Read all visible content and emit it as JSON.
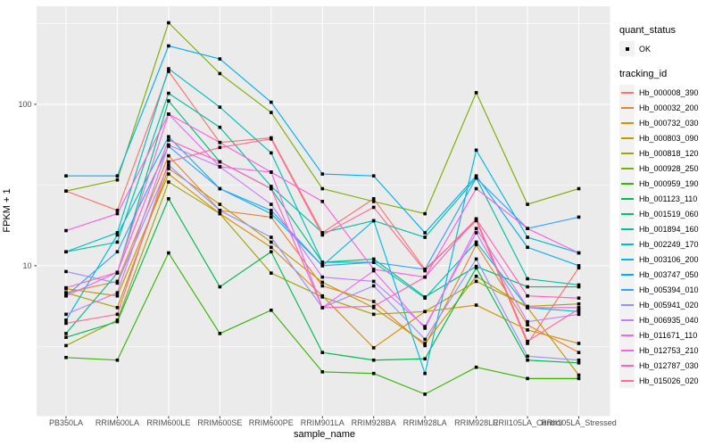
{
  "chart_data": {
    "type": "line",
    "title": "",
    "xlabel": "sample_name",
    "ylabel": "FPKM + 1",
    "y_scale": "log10",
    "ylim": [
      1.17,
      405
    ],
    "y_ticks": [
      10,
      100
    ],
    "y_tick_labels": [
      "10",
      "100"
    ],
    "y_minor": [
      3.162,
      31.62,
      316.2
    ],
    "grid": true,
    "panel_bg": "#EBEBEB",
    "grid_color": "#FFFFFF",
    "axis_text_color": "#4D4D4D",
    "point_color": "#000000",
    "legend_position": "right",
    "legend": {
      "quant_status": {
        "title": "quant_status",
        "items": [
          "OK"
        ]
      },
      "tracking_id": {
        "title": "tracking_id"
      }
    },
    "categories": [
      "PB350LA",
      "RRIM600LA",
      "RRIM600LE",
      "RRIM600SE",
      "RRIM600PE",
      "RRIM901LA",
      "RRIM928BA",
      "RRIM928LA",
      "RRIM928LE",
      "RRII105LA_Control",
      "RRII105LA_Stressed"
    ],
    "series": [
      {
        "name": "Hb_000008_390",
        "color": "#F8766D",
        "values": [
          29,
          22,
          160,
          58,
          62,
          16,
          26,
          9.5,
          19,
          3.3,
          9.7
        ]
      },
      {
        "name": "Hb_000032_200",
        "color": "#EA8331",
        "values": [
          6.8,
          8.0,
          48,
          22,
          20,
          7.5,
          6.0,
          3.2,
          13.5,
          4.3,
          2.9
        ]
      },
      {
        "name": "Hb_000732_030",
        "color": "#D89000",
        "values": [
          7.2,
          6.5,
          37,
          21,
          13,
          6.5,
          3.1,
          5.2,
          5.7,
          4.0,
          3.3
        ]
      },
      {
        "name": "Hb_000803_090",
        "color": "#C09B00",
        "values": [
          6.8,
          5.5,
          40,
          24,
          14,
          7.9,
          5.5,
          3.3,
          8.6,
          5.5,
          2.1
        ]
      },
      {
        "name": "Hb_000818_120",
        "color": "#A3A500",
        "values": [
          3.2,
          4.6,
          33,
          21,
          9.0,
          6.4,
          5.0,
          5.2,
          8.0,
          5.6,
          5.8
        ]
      },
      {
        "name": "Hb_000928_250",
        "color": "#7CAE00",
        "values": [
          29,
          34,
          320,
          155,
          89,
          30,
          25,
          21,
          118,
          24,
          30
        ]
      },
      {
        "name": "Hb_000959_190",
        "color": "#39B600",
        "values": [
          2.7,
          2.6,
          12,
          3.8,
          5.3,
          2.2,
          2.15,
          1.6,
          2.35,
          2.0,
          2.0
        ]
      },
      {
        "name": "Hb_001123_110",
        "color": "#00BB4E",
        "values": [
          3.6,
          4.5,
          26,
          7.4,
          12.2,
          2.9,
          2.6,
          2.65,
          9.7,
          2.6,
          2.5
        ]
      },
      {
        "name": "Hb_001519_060",
        "color": "#00BF7D",
        "values": [
          3.8,
          9.0,
          105,
          44,
          30,
          10.5,
          11,
          6.4,
          9.9,
          7.4,
          7.4
        ]
      },
      {
        "name": "Hb_001894_160",
        "color": "#00C1A3",
        "values": [
          12.2,
          14,
          117,
          72,
          31,
          16,
          19,
          15,
          35,
          8.3,
          7.6
        ]
      },
      {
        "name": "Hb_002249_170",
        "color": "#00BFC4",
        "values": [
          12.2,
          16,
          166,
          96,
          50,
          10.5,
          10.5,
          6.3,
          14,
          5.5,
          5.2
        ]
      },
      {
        "name": "Hb_003106_200",
        "color": "#00BAE0",
        "values": [
          4.6,
          15.5,
          63,
          30,
          21,
          10,
          19,
          2.15,
          52,
          15,
          12
        ]
      },
      {
        "name": "Hb_003747_050",
        "color": "#00B0F6",
        "values": [
          36,
          36,
          230,
          191,
          103,
          37,
          36,
          16,
          36,
          13,
          10
        ]
      },
      {
        "name": "Hb_005394_010",
        "color": "#35A2FF",
        "values": [
          6.5,
          12.2,
          55,
          30,
          22,
          10,
          10.5,
          9.5,
          35,
          17,
          20
        ]
      },
      {
        "name": "Hb_005941_020",
        "color": "#9590FF",
        "values": [
          9.2,
          7.8,
          42,
          22,
          15,
          5.5,
          7.5,
          3.5,
          11,
          2.75,
          2.6
        ]
      },
      {
        "name": "Hb_006935_040",
        "color": "#C77CFF",
        "values": [
          5.0,
          6.8,
          56,
          41,
          24,
          8.5,
          8.0,
          4.2,
          16,
          4.5,
          5.0
        ]
      },
      {
        "name": "Hb_011671_110",
        "color": "#E76BF3",
        "values": [
          6.5,
          9.1,
          87,
          41,
          38,
          5.5,
          9.3,
          4.1,
          17,
          5.5,
          5.5
        ]
      },
      {
        "name": "Hb_012753_210",
        "color": "#FA62DB",
        "values": [
          16.5,
          21,
          87,
          58,
          38,
          25,
          9.5,
          8.5,
          30,
          17,
          12
        ]
      },
      {
        "name": "Hb_012787_030",
        "color": "#FF62BC",
        "values": [
          7.3,
          9.1,
          60,
          44,
          30,
          5.5,
          5.6,
          8.5,
          19.5,
          6.5,
          6.3
        ]
      },
      {
        "name": "Hb_015026_020",
        "color": "#FF6A98",
        "values": [
          4.4,
          5.0,
          44,
          54,
          61,
          15.5,
          23,
          9.3,
          19.5,
          3.4,
          5.4
        ]
      }
    ]
  }
}
